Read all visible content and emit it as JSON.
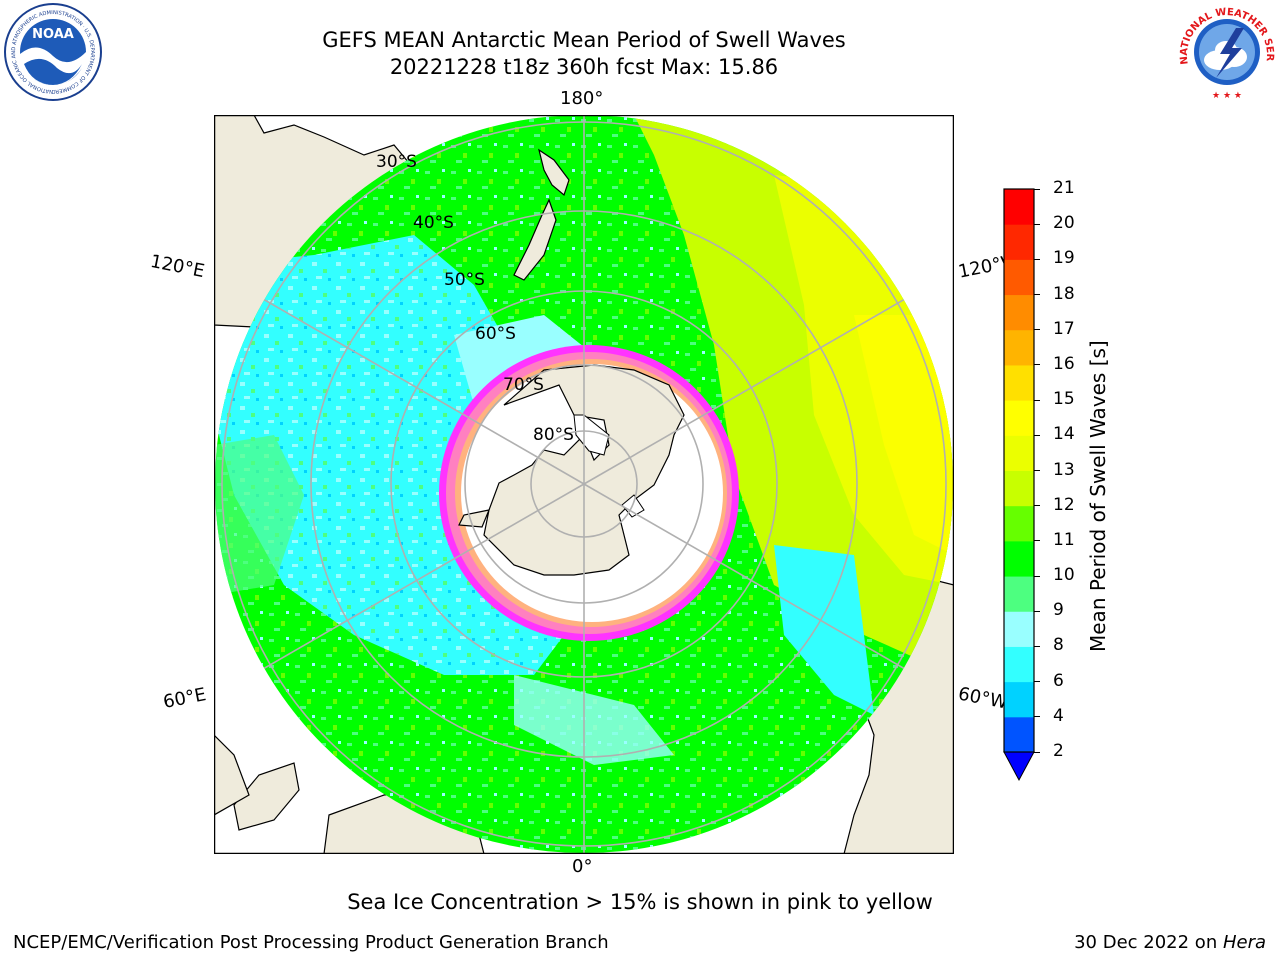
{
  "header": {
    "title_line1": "GEFS MEAN Antarctic Mean Period of Swell Waves",
    "title_line2": "20221228 t18z 360h fcst   Max: 15.86"
  },
  "logos": {
    "left": "noao-logo",
    "left_text": "NOAA",
    "left_ring_text": "NATIONAL OCEANIC AND ATMOSPHERIC ADMINISTRATION · U.S. DEPARTMENT OF COMMERCE",
    "right": "nws-logo",
    "right_ring_text": "NATIONAL WEATHER SERVICE"
  },
  "map": {
    "projection": "south-polar-stereographic",
    "longitude_labels": {
      "top": "180°",
      "bottom": "0°",
      "upper_left": "120°E",
      "lower_left": "60°E",
      "upper_right": "120°W",
      "lower_right": "60°W"
    },
    "latitude_labels": [
      "30°S",
      "40°S",
      "50°S",
      "60°S",
      "70°S",
      "80°S"
    ],
    "colors": {
      "land": "#efebdc",
      "grid": "#b0b0b0",
      "sea_ice": [
        "#ff33ff",
        "#ff80c0",
        "#ffb27f",
        "#ffe680",
        "#ffffff"
      ]
    }
  },
  "colorbar": {
    "title": "Mean Period of Swell Waves [s]",
    "ticks": [
      "2",
      "4",
      "6",
      "8",
      "9",
      "10",
      "11",
      "12",
      "13",
      "14",
      "15",
      "16",
      "17",
      "18",
      "19",
      "20",
      "21"
    ],
    "colors": [
      "#0054ff",
      "#00d2ff",
      "#33ffff",
      "#99ffff",
      "#4dff80",
      "#00ff00",
      "#66ff00",
      "#c8ff00",
      "#ebff00",
      "#ffff00",
      "#ffe000",
      "#ffb400",
      "#ff8c00",
      "#ff5a00",
      "#ff2800",
      "#ff0000"
    ],
    "under_color": "#0000ff"
  },
  "note": "Sea Ice Concentration > 15% is shown in pink to yellow",
  "footer": {
    "left": "NCEP/EMC/Verification Post Processing Product Generation Branch",
    "right_prefix": "30 Dec 2022 on ",
    "right_host": "Hera"
  }
}
